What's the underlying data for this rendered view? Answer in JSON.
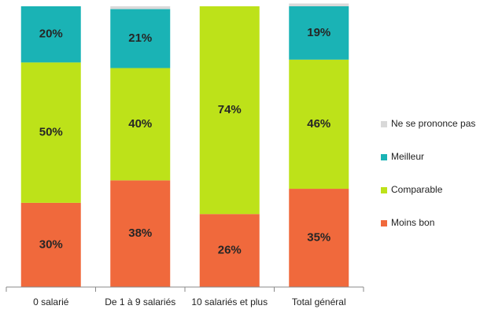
{
  "chart_data": {
    "type": "stacked_bar",
    "categories": [
      "0 salarié",
      "De 1 à 9 salariés",
      "10 salariés et plus",
      "Total général"
    ],
    "ylim": [
      0,
      100
    ],
    "series": [
      {
        "name": "Moins bon",
        "color": "#f0693c",
        "values": [
          30,
          38,
          26,
          35
        ],
        "value_labels": [
          "30%",
          "38%",
          "26%",
          "35%"
        ]
      },
      {
        "name": "Comparable",
        "color": "#bde219",
        "values": [
          50,
          40,
          74,
          46
        ],
        "value_labels": [
          "50%",
          "40%",
          "74%",
          "46%"
        ]
      },
      {
        "name": "Meilleur",
        "color": "#1ab3b5",
        "values": [
          20,
          21,
          null,
          19
        ],
        "value_labels": [
          "20%",
          "21%",
          null,
          "19%"
        ]
      },
      {
        "name": "Ne se prononce pas",
        "color": "#d9d9d9",
        "values": [
          null,
          1,
          null,
          1
        ]
      }
    ],
    "legend": "right"
  }
}
